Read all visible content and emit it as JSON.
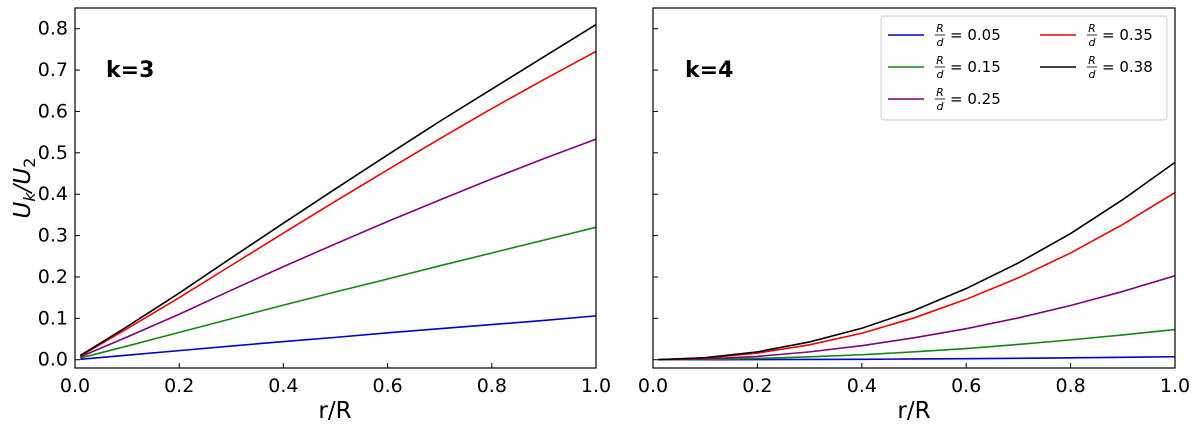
{
  "chart_data": [
    {
      "type": "line",
      "panel_label": "k=3",
      "xlabel": "r/R",
      "ylabel_parts": {
        "main": "U",
        "sub1": "k",
        "slash": "/U",
        "sub2": "2"
      },
      "xlim": [
        0.0,
        1.0
      ],
      "ylim": [
        -0.02,
        0.85
      ],
      "xticks": [
        0.0,
        0.2,
        0.4,
        0.6,
        0.8,
        1.0
      ],
      "xtick_labels": [
        "0.0",
        "0.2",
        "0.4",
        "0.6",
        "0.8",
        "1.0"
      ],
      "yticks": [
        0.0,
        0.1,
        0.2,
        0.3,
        0.4,
        0.5,
        0.6,
        0.7,
        0.8
      ],
      "ytick_labels": [
        "0.0",
        "0.1",
        "0.2",
        "0.3",
        "0.4",
        "0.5",
        "0.6",
        "0.7",
        "0.8"
      ],
      "x": [
        0.01,
        0.1,
        0.2,
        0.3,
        0.4,
        0.5,
        0.6,
        0.7,
        0.8,
        0.9,
        1.0
      ],
      "series": [
        {
          "ratio": "0.05",
          "color": "#0000cc",
          "values": [
            0.001,
            0.011,
            0.022,
            0.033,
            0.044,
            0.054,
            0.065,
            0.075,
            0.085,
            0.095,
            0.106
          ]
        },
        {
          "ratio": "0.15",
          "color": "#118811",
          "values": [
            0.004,
            0.033,
            0.066,
            0.099,
            0.132,
            0.164,
            0.195,
            0.227,
            0.258,
            0.289,
            0.32
          ]
        },
        {
          "ratio": "0.25",
          "color": "#800080",
          "values": [
            0.007,
            0.055,
            0.11,
            0.168,
            0.225,
            0.28,
            0.334,
            0.386,
            0.437,
            0.486,
            0.533
          ]
        },
        {
          "ratio": "0.35",
          "color": "#ee0000",
          "values": [
            0.009,
            0.075,
            0.15,
            0.228,
            0.306,
            0.383,
            0.459,
            0.534,
            0.607,
            0.677,
            0.745
          ]
        },
        {
          "ratio": "0.38",
          "color": "#000000",
          "values": [
            0.01,
            0.08,
            0.161,
            0.246,
            0.33,
            0.413,
            0.495,
            0.576,
            0.654,
            0.732,
            0.81
          ]
        }
      ]
    },
    {
      "type": "line",
      "panel_label": "k=4",
      "xlabel": "r/R",
      "xlim": [
        0.0,
        1.0
      ],
      "ylim": [
        -0.02,
        0.85
      ],
      "xticks": [
        0.0,
        0.2,
        0.4,
        0.6,
        0.8,
        1.0
      ],
      "xtick_labels": [
        "0.0",
        "0.2",
        "0.4",
        "0.6",
        "0.8",
        "1.0"
      ],
      "yticks": [
        0.0,
        0.1,
        0.2,
        0.3,
        0.4,
        0.5,
        0.6,
        0.7,
        0.8
      ],
      "x": [
        0.01,
        0.1,
        0.2,
        0.3,
        0.4,
        0.5,
        0.6,
        0.7,
        0.8,
        0.9,
        1.0
      ],
      "series": [
        {
          "ratio": "0.05",
          "color": "#0000cc",
          "values": [
            0.0,
            0.0001,
            0.0003,
            0.0006,
            0.0011,
            0.0018,
            0.0026,
            0.0035,
            0.0046,
            0.0058,
            0.0072
          ]
        },
        {
          "ratio": "0.15",
          "color": "#118811",
          "values": [
            0.0,
            0.0008,
            0.003,
            0.007,
            0.012,
            0.019,
            0.027,
            0.037,
            0.048,
            0.06,
            0.073
          ]
        },
        {
          "ratio": "0.25",
          "color": "#800080",
          "values": [
            0.0,
            0.002,
            0.008,
            0.019,
            0.034,
            0.053,
            0.075,
            0.101,
            0.131,
            0.165,
            0.203
          ]
        },
        {
          "ratio": "0.35",
          "color": "#ee0000",
          "values": [
            0.0,
            0.004,
            0.016,
            0.036,
            0.064,
            0.101,
            0.146,
            0.198,
            0.258,
            0.327,
            0.404
          ]
        },
        {
          "ratio": "0.38",
          "color": "#000000",
          "values": [
            0.0,
            0.005,
            0.019,
            0.043,
            0.076,
            0.119,
            0.172,
            0.234,
            0.305,
            0.387,
            0.477
          ]
        }
      ]
    }
  ],
  "legend": {
    "placement": "top-right of right panel",
    "frac_num": "R",
    "frac_den": "d",
    "eq": "=",
    "entries": [
      {
        "ratio": "0.05",
        "color": "#0000cc"
      },
      {
        "ratio": "0.15",
        "color": "#118811"
      },
      {
        "ratio": "0.25",
        "color": "#800080"
      },
      {
        "ratio": "0.35",
        "color": "#ee0000"
      },
      {
        "ratio": "0.38",
        "color": "#000000"
      }
    ]
  }
}
